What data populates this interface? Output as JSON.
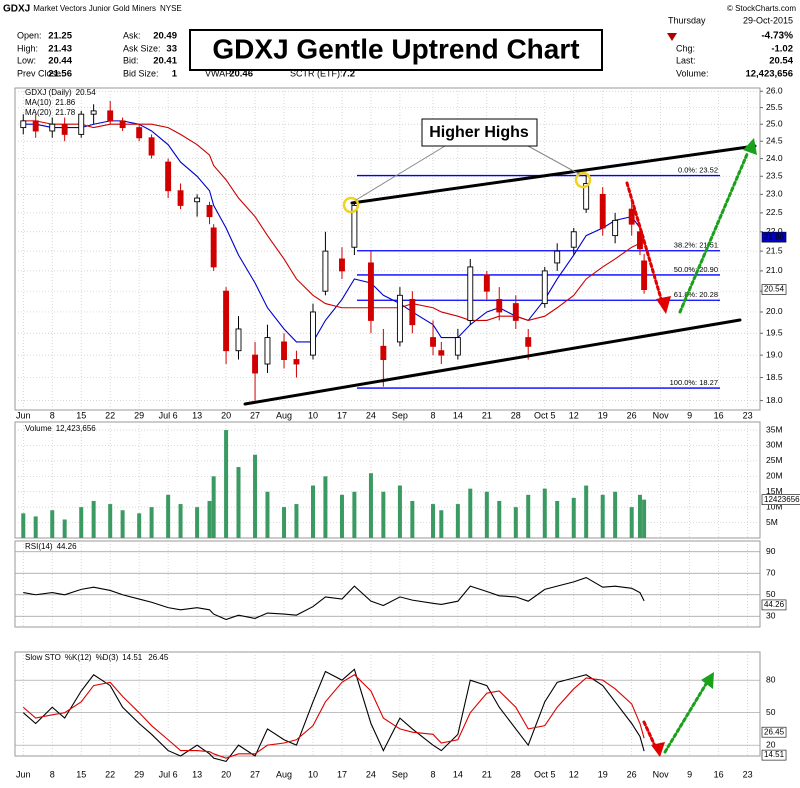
{
  "header": {
    "symbol": "GDXJ",
    "name": "Market Vectors Junior Gold Miners",
    "exchange": "NYSE",
    "credit": "© StockCharts.com",
    "weekday": "Thursday",
    "date": "29-Oct-2015",
    "change_pct": "-4.73%",
    "quote_left": [
      {
        "label": "Open:",
        "value": 21.25
      },
      {
        "label": "High:",
        "value": 21.43
      },
      {
        "label": "Low:",
        "value": 20.44
      },
      {
        "label": "Prev Close:",
        "value": 21.56
      }
    ],
    "quote_mid": [
      {
        "label": "Ask:",
        "value": 20.49
      },
      {
        "label": "Ask Size:",
        "value": 33
      },
      {
        "label": "Bid:",
        "value": 20.41
      },
      {
        "label": "Bid Size:",
        "value": 1
      }
    ],
    "quote_extra": [
      {
        "label": "VWAP:",
        "value": 20.46
      },
      {
        "label": "SCTR (ETF):",
        "value": 7.2
      }
    ],
    "quote_right": [
      {
        "label": "Chg:",
        "value": -1.02
      },
      {
        "label": "Last:",
        "value": 20.54
      },
      {
        "label": "Volume:",
        "value": "12,423,656"
      }
    ]
  },
  "chart_data": {
    "type": "candlestick",
    "title": "GDXJ Gentle Uptrend Chart",
    "annotation": "Higher Highs",
    "name": "GDXJ (Daily)",
    "log_y": true,
    "grid": true,
    "x": [
      "2015-06-01",
      "2015-06-04",
      "2015-06-08",
      "2015-06-11",
      "2015-06-15",
      "2015-06-18",
      "2015-06-22",
      "2015-06-25",
      "2015-06-29",
      "2015-07-02",
      "2015-07-06",
      "2015-07-09",
      "2015-07-13",
      "2015-07-16",
      "2015-07-17",
      "2015-07-20",
      "2015-07-23",
      "2015-07-27",
      "2015-07-30",
      "2015-08-03",
      "2015-08-06",
      "2015-08-10",
      "2015-08-13",
      "2015-08-17",
      "2015-08-20",
      "2015-08-24",
      "2015-08-27",
      "2015-08-31",
      "2015-09-03",
      "2015-09-08",
      "2015-09-10",
      "2015-09-14",
      "2015-09-17",
      "2015-09-21",
      "2015-09-24",
      "2015-09-28",
      "2015-10-01",
      "2015-10-05",
      "2015-10-08",
      "2015-10-12",
      "2015-10-15",
      "2015-10-19",
      "2015-10-22",
      "2015-10-26",
      "2015-10-28",
      "2015-10-29"
    ],
    "open": [
      24.9,
      25.1,
      24.8,
      25.0,
      24.7,
      25.3,
      25.4,
      25.1,
      24.9,
      24.6,
      23.9,
      23.1,
      22.8,
      22.7,
      22.1,
      20.5,
      19.1,
      19.0,
      18.8,
      19.3,
      18.9,
      19.0,
      20.5,
      21.3,
      21.6,
      21.2,
      19.2,
      19.3,
      20.3,
      19.4,
      19.1,
      19.0,
      19.8,
      20.9,
      20.3,
      20.2,
      19.4,
      20.2,
      21.2,
      21.6,
      22.6,
      23.0,
      21.9,
      22.6,
      22.0,
      21.25
    ],
    "high": [
      25.3,
      25.3,
      25.2,
      25.2,
      25.4,
      25.6,
      25.7,
      25.2,
      25.0,
      24.7,
      24.0,
      23.3,
      23.0,
      22.8,
      22.2,
      20.6,
      19.9,
      19.3,
      19.7,
      19.5,
      19.1,
      20.2,
      22.0,
      21.6,
      22.75,
      21.5,
      19.6,
      20.6,
      20.5,
      19.8,
      19.3,
      19.6,
      21.3,
      21.0,
      20.6,
      20.4,
      19.6,
      21.1,
      21.7,
      22.1,
      23.6,
      23.2,
      22.5,
      22.8,
      22.2,
      21.43
    ],
    "low": [
      24.7,
      24.6,
      24.6,
      24.5,
      24.6,
      25.0,
      25.0,
      24.8,
      24.5,
      24.0,
      22.9,
      22.6,
      22.4,
      22.2,
      21.0,
      18.8,
      18.9,
      18.0,
      18.6,
      18.7,
      18.5,
      18.9,
      20.4,
      20.8,
      21.4,
      19.5,
      18.3,
      19.2,
      19.5,
      19.0,
      18.8,
      18.9,
      19.7,
      20.3,
      19.8,
      19.6,
      18.9,
      20.1,
      21.0,
      21.4,
      22.5,
      21.9,
      21.7,
      21.9,
      21.4,
      20.44
    ],
    "close": [
      25.1,
      24.8,
      25.0,
      24.7,
      25.3,
      25.4,
      25.1,
      24.9,
      24.6,
      24.1,
      23.1,
      22.7,
      22.9,
      22.4,
      21.1,
      19.1,
      19.6,
      18.6,
      19.4,
      18.9,
      18.8,
      20.0,
      21.5,
      21.0,
      22.7,
      19.8,
      18.9,
      20.4,
      19.7,
      19.2,
      19.0,
      19.4,
      21.1,
      20.5,
      20.0,
      19.8,
      19.2,
      21.0,
      21.5,
      22.0,
      23.3,
      22.1,
      22.3,
      22.2,
      21.56,
      20.54
    ],
    "series": [
      {
        "name": "MA(10)",
        "color": "#0000cc",
        "values": [
          25.0,
          25.0,
          24.9,
          24.9,
          24.9,
          25.0,
          25.1,
          25.1,
          25.0,
          24.8,
          24.4,
          23.9,
          23.5,
          23.1,
          22.7,
          22.1,
          21.4,
          20.7,
          20.1,
          19.6,
          19.3,
          19.3,
          19.8,
          20.3,
          20.8,
          20.7,
          20.4,
          20.2,
          20.0,
          19.7,
          19.4,
          19.4,
          19.7,
          20.0,
          20.1,
          19.9,
          19.8,
          20.3,
          20.8,
          21.4,
          21.9,
          22.1,
          22.3,
          22.4,
          22.1,
          21.86
        ]
      },
      {
        "name": "MA(20)",
        "color": "#cc0000",
        "values": [
          25.1,
          25.1,
          25.0,
          25.0,
          25.0,
          24.9,
          25.0,
          25.0,
          25.0,
          25.0,
          24.9,
          24.7,
          24.4,
          24.1,
          23.8,
          23.4,
          22.9,
          22.4,
          21.9,
          21.3,
          20.8,
          20.4,
          20.2,
          20.1,
          20.1,
          20.1,
          20.1,
          20.1,
          20.2,
          20.1,
          20.0,
          19.9,
          19.8,
          19.8,
          19.9,
          19.9,
          19.8,
          19.9,
          20.1,
          20.4,
          20.8,
          21.1,
          21.3,
          21.6,
          21.7,
          21.78
        ]
      }
    ],
    "xlim": [
      "2015-05-30",
      "2015-11-26"
    ],
    "xticks": [
      {
        "value": "2015-06-01",
        "label": "Jun"
      },
      {
        "value": "2015-06-08",
        "label": "8"
      },
      {
        "value": "2015-06-15",
        "label": "15"
      },
      {
        "value": "2015-06-22",
        "label": "22"
      },
      {
        "value": "2015-06-29",
        "label": "29"
      },
      {
        "value": "2015-07-06",
        "label": "Jul 6"
      },
      {
        "value": "2015-07-13",
        "label": "13"
      },
      {
        "value": "2015-07-20",
        "label": "20"
      },
      {
        "value": "2015-07-27",
        "label": "27"
      },
      {
        "value": "2015-08-03",
        "label": "Aug"
      },
      {
        "value": "2015-08-10",
        "label": "10"
      },
      {
        "value": "2015-08-17",
        "label": "17"
      },
      {
        "value": "2015-08-24",
        "label": "24"
      },
      {
        "value": "2015-08-31",
        "label": "Sep"
      },
      {
        "value": "2015-09-08",
        "label": "8"
      },
      {
        "value": "2015-09-14",
        "label": "14"
      },
      {
        "value": "2015-09-21",
        "label": "21"
      },
      {
        "value": "2015-09-28",
        "label": "28"
      },
      {
        "value": "2015-10-05",
        "label": "Oct 5"
      },
      {
        "value": "2015-10-12",
        "label": "12"
      },
      {
        "value": "2015-10-19",
        "label": "19"
      },
      {
        "value": "2015-10-26",
        "label": "26"
      },
      {
        "value": "2015-11-02",
        "label": "Nov"
      },
      {
        "value": "2015-11-09",
        "label": "9"
      },
      {
        "value": "2015-11-16",
        "label": "16"
      },
      {
        "value": "2015-11-23",
        "label": "23"
      }
    ],
    "ylim": [
      17.8,
      26.1
    ],
    "yticks": [
      {
        "value": 18,
        "label": "18.0"
      },
      {
        "value": 18.5,
        "label": "18.5"
      },
      {
        "value": 19,
        "label": "19.0"
      },
      {
        "value": 19.5,
        "label": "19.5"
      },
      {
        "value": 20,
        "label": "20.0"
      },
      {
        "value": 20.5,
        "label": "20.5"
      },
      {
        "value": 21,
        "label": "21.0"
      },
      {
        "value": 21.5,
        "label": "21.5"
      },
      {
        "value": 22,
        "label": "22.0"
      },
      {
        "value": 22.5,
        "label": "22.5"
      },
      {
        "value": 23,
        "label": "23.0"
      },
      {
        "value": 23.5,
        "label": "23.5"
      },
      {
        "value": 24,
        "label": "24.0"
      },
      {
        "value": 24.5,
        "label": "24.5"
      },
      {
        "value": 25,
        "label": "25.0"
      },
      {
        "value": 25.5,
        "label": "25.5"
      },
      {
        "value": 26,
        "label": "26.0"
      }
    ],
    "fib_levels": [
      {
        "label": "0.0%: 23.52",
        "value": 23.52
      },
      {
        "label": "38.2%: 21.51",
        "value": 21.51
      },
      {
        "label": "50.0%: 20.90",
        "value": 20.9
      },
      {
        "label": "61.8%: 20.28",
        "value": 20.28
      },
      {
        "label": "100.0%: 18.27",
        "value": 18.27
      }
    ],
    "panels": [
      {
        "type": "bar",
        "name": "Volume",
        "value_label": "12,423,656",
        "color": "#3a9a62",
        "values": [
          8000000,
          7000000,
          9000000,
          6000000,
          10000000,
          12000000,
          11000000,
          9000000,
          8000000,
          10000000,
          14000000,
          11000000,
          10000000,
          12000000,
          20000000,
          35000000,
          23000000,
          27000000,
          15000000,
          10000000,
          11000000,
          17000000,
          20000000,
          14000000,
          15000000,
          21000000,
          15000000,
          17000000,
          12000000,
          11000000,
          9000000,
          11000000,
          16000000,
          15000000,
          12000000,
          10000000,
          14000000,
          16000000,
          12000000,
          13000000,
          17000000,
          14000000,
          15000000,
          10000000,
          14000000,
          12423656
        ],
        "ylim": [
          0,
          37600000
        ],
        "yticks": [
          {
            "value": 5000000,
            "label": "5M"
          },
          {
            "value": 10000000,
            "label": "10M"
          },
          {
            "value": 15000000,
            "label": "15M"
          },
          {
            "value": 20000000,
            "label": "20M"
          },
          {
            "value": 25000000,
            "label": "25M"
          },
          {
            "value": 30000000,
            "label": "30M"
          },
          {
            "value": 35000000,
            "label": "35M"
          }
        ]
      },
      {
        "type": "line",
        "ylim": [
          20,
          100
        ],
        "yticks": [
          30,
          50,
          70,
          90
        ],
        "series": [
          {
            "name": "RSI(14)",
            "color": "#000000",
            "values": [
              52,
              50,
              52,
              50,
              55,
              57,
              54,
              50,
              46,
              43,
              38,
              36,
              38,
              36,
              32,
              27,
              31,
              28,
              33,
              32,
              31,
              39,
              48,
              46,
              58,
              44,
              40,
              48,
              45,
              42,
              41,
              44,
              58,
              53,
              49,
              48,
              44,
              55,
              58,
              62,
              66,
              57,
              58,
              56,
              52,
              44.26
            ]
          }
        ]
      },
      {
        "type": "line",
        "name": "Slow STO",
        "ylim": [
          10,
          106
        ],
        "yticks": [
          20,
          50,
          80
        ],
        "series": [
          {
            "name": "%K(12)",
            "color": "#000000",
            "values": [
              50,
              40,
              55,
              45,
              70,
              85,
              75,
              55,
              40,
              30,
              15,
              10,
              20,
              12,
              8,
              5,
              20,
              10,
              35,
              25,
              20,
              60,
              88,
              80,
              90,
              40,
              15,
              45,
              35,
              20,
              15,
              30,
              80,
              75,
              55,
              35,
              20,
              60,
              78,
              82,
              85,
              75,
              60,
              40,
              28,
              14.51
            ]
          },
          {
            "name": "%D(3)",
            "color": "#dd0000",
            "values": [
              55,
              45,
              48,
              50,
              60,
              75,
              78,
              65,
              50,
              38,
              25,
              15,
              15,
              14,
              12,
              8,
              12,
              12,
              20,
              22,
              25,
              38,
              60,
              78,
              85,
              70,
              45,
              35,
              32,
              30,
              22,
              25,
              50,
              68,
              70,
              55,
              35,
              38,
              55,
              72,
              82,
              80,
              72,
              58,
              40,
              26.45
            ]
          }
        ]
      }
    ]
  }
}
